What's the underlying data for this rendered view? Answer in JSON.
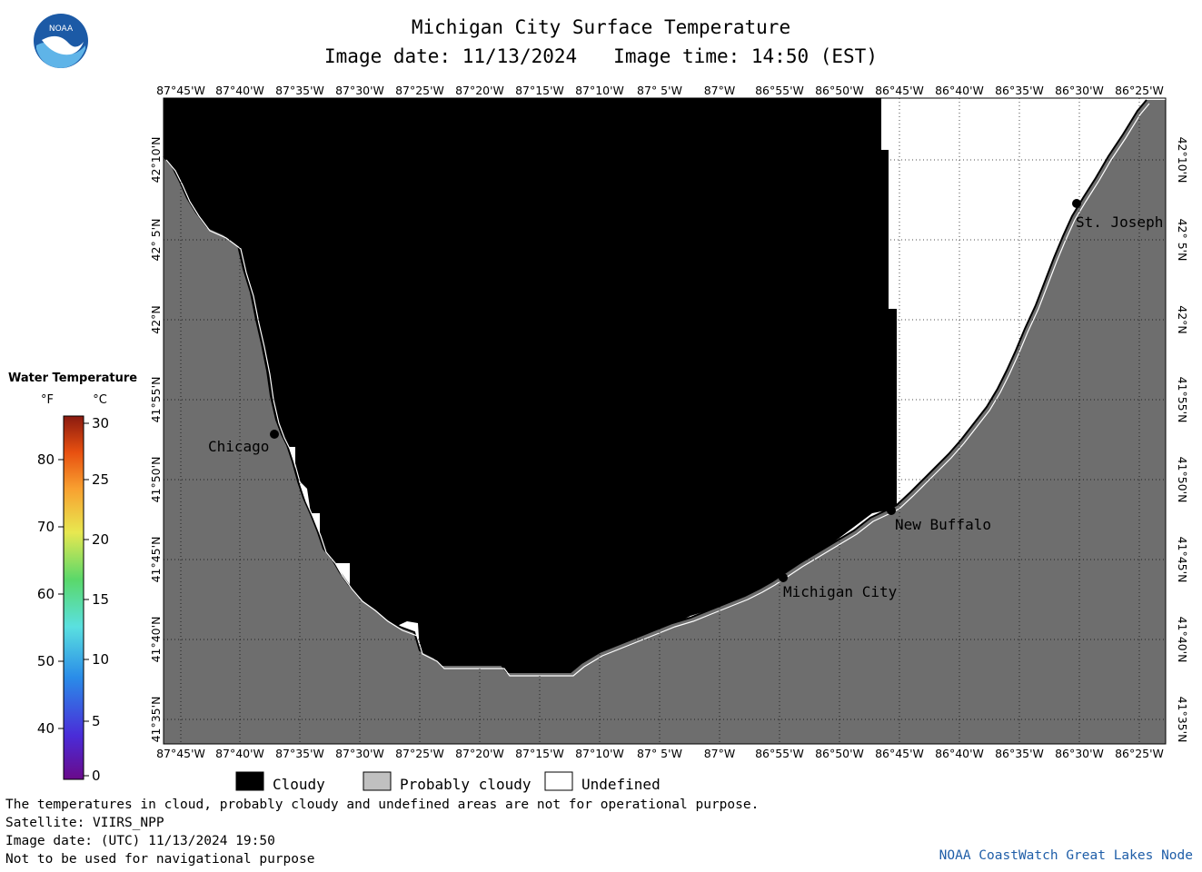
{
  "header": {
    "title": "Michigan City Surface Temperature",
    "image_date": "Image date: 11/13/2024",
    "image_time": "Image time: 14:50 (EST)"
  },
  "logo": {
    "text": "NOAA",
    "colors": {
      "blue": "#1c5aa6",
      "sky": "#5fb4e8",
      "white": "#ffffff"
    }
  },
  "axes": {
    "lon_labels": [
      "87°45'W",
      "87°40'W",
      "87°35'W",
      "87°30'W",
      "87°25'W",
      "87°20'W",
      "87°15'W",
      "87°10'W",
      "87° 5'W",
      "87°W",
      "86°55'W",
      "86°50'W",
      "86°45'W",
      "86°40'W",
      "86°35'W",
      "86°30'W",
      "86°25'W"
    ],
    "lat_labels": [
      "42°10'N",
      "42° 5'N",
      "42°N",
      "41°55'N",
      "41°50'N",
      "41°45'N",
      "41°40'N",
      "41°35'N"
    ]
  },
  "cities": [
    {
      "name": "Chicago"
    },
    {
      "name": "St. Joseph"
    },
    {
      "name": "New Buffalo"
    },
    {
      "name": "Michigan City"
    }
  ],
  "colorbar": {
    "title": "Water Temperature",
    "unit_f": "°F",
    "unit_c": "°C",
    "f_ticks": [
      "80",
      "70",
      "60",
      "50",
      "40"
    ],
    "c_ticks": [
      "30",
      "25",
      "20",
      "15",
      "10",
      "5",
      "0"
    ]
  },
  "legend": [
    {
      "label": "Cloudy",
      "color": "#000000"
    },
    {
      "label": "Probably cloudy",
      "color": "#c0c0c0"
    },
    {
      "label": "Undefined",
      "color": "#ffffff"
    }
  ],
  "colors": {
    "land": "#6e6e6e",
    "cloudy": "#000000",
    "undefined": "#ffffff"
  },
  "footer": {
    "line1": "The temperatures in cloud, probably cloudy and undefined areas are not for operational purpose.",
    "line2": "Satellite: VIIRS_NPP",
    "line3": "Image date: (UTC) 11/13/2024  19:50",
    "line4": "Not to be used for navigational purpose",
    "credit": "NOAA CoastWatch Great Lakes Node"
  }
}
